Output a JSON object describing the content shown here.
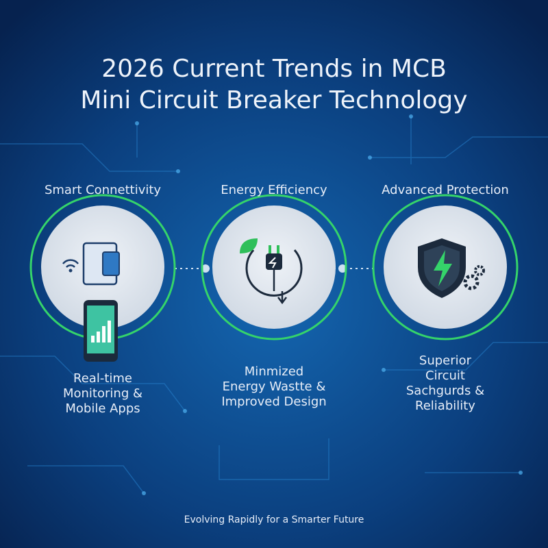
{
  "title": {
    "lines": [
      "2026 Current Trends in MCB",
      "Mini Circuit Breaker Technology"
    ]
  },
  "columns": [
    {
      "heading": "Smart Connettivity",
      "description": [
        "Real-time",
        "Monitoring &",
        "Mobile Apps"
      ]
    },
    {
      "heading": "Energy Efficiency",
      "description": [
        "Minmized",
        "Energy Wastte &",
        "Improved Design"
      ]
    },
    {
      "heading": "Advanced Protection",
      "description": [
        "Superior",
        "Circuit",
        "Sachgurds &",
        "Reliability"
      ]
    }
  ],
  "footer": "Evolving Rapidly for a Smarter Future"
}
